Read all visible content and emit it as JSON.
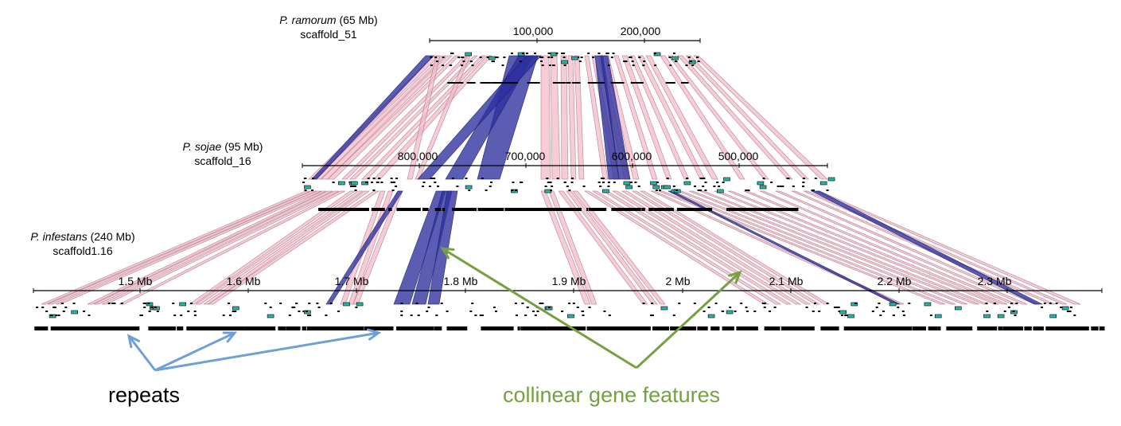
{
  "genomes": [
    {
      "species": "P. ramorum",
      "size": "(65 Mb)",
      "scaffold": "scaffold_51",
      "ticks": [
        "100,000",
        "200,000"
      ]
    },
    {
      "species": "P. sojae",
      "size": "(95 Mb)",
      "scaffold": "scaffold_16",
      "ticks": [
        "800,000",
        "700,000",
        "600,000",
        "500,000"
      ]
    },
    {
      "species": "P. infestans",
      "size": "(240 Mb)",
      "scaffold": "scaffold1.16",
      "ticks": [
        "1.5 Mb",
        "1.6 Mb",
        "1.7 Mb",
        "1.8 Mb",
        "1.9 Mb",
        "2 Mb",
        "2.1 Mb",
        "2.2 Mb",
        "2.3 Mb"
      ]
    }
  ],
  "annotations": {
    "repeats": "repeats",
    "collinear": "collinear gene features"
  },
  "colors": {
    "forward_link": "#f2b8c6",
    "forward_edge": "#b07a8a",
    "inverted_link": "#2d2f9e",
    "gene": "#2bb3a3",
    "repeats_arrow": "#6f9fd8",
    "collinear_arrow": "#77a040"
  }
}
